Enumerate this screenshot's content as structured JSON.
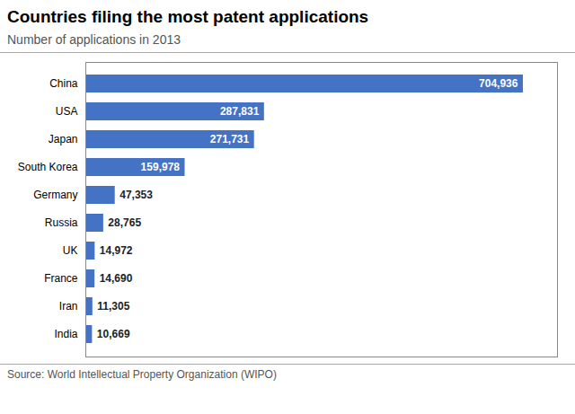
{
  "chart_data": {
    "type": "bar",
    "orientation": "horizontal",
    "title": "Countries filing the most patent applications",
    "subtitle": "Number of applications in 2013",
    "annotations": [
      "Source: World Intellectual Property Organization (WIPO)"
    ],
    "categories": [
      "China",
      "USA",
      "Japan",
      "South Korea",
      "Germany",
      "Russia",
      "UK",
      "France",
      "Iran",
      "India"
    ],
    "values": [
      704936,
      287831,
      271731,
      159978,
      47353,
      28765,
      14972,
      14690,
      11305,
      10669
    ],
    "value_labels": [
      "704,936",
      "287,831",
      "271,731",
      "159,978",
      "47,353",
      "28,765",
      "14,972",
      "14,690",
      "11,305",
      "10,669"
    ],
    "data_labels": true,
    "color": "#4472c4",
    "xlim": [
      0,
      760000
    ],
    "xticks": [],
    "tick_labels": "y",
    "grid": false
  }
}
